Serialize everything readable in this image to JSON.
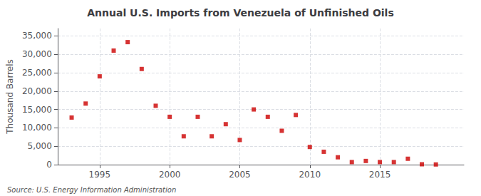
{
  "chart_data": {
    "type": "scatter",
    "title": "Annual U.S. Imports from Venezuela of Unfinished Oils",
    "ylabel": "Thousand Barrels",
    "annotation": "Source: U.S. Energy Information Administration",
    "x": [
      1993,
      1994,
      1995,
      1996,
      1997,
      1998,
      1999,
      2000,
      2001,
      2002,
      2003,
      2004,
      2005,
      2006,
      2007,
      2008,
      2009,
      2010,
      2011,
      2012,
      2013,
      2014,
      2015,
      2016,
      2017,
      2018,
      2019
    ],
    "values": [
      12800,
      16600,
      24000,
      31000,
      33300,
      26000,
      16000,
      13000,
      7700,
      13000,
      7700,
      11000,
      6700,
      15000,
      13000,
      9200,
      13500,
      4800,
      3500,
      2000,
      700,
      1000,
      700,
      700,
      1600,
      100,
      50
    ],
    "color": "#cc0000",
    "marker": "square",
    "xlim": [
      1992,
      2021
    ],
    "xticks": [
      1995,
      2000,
      2005,
      2010,
      2015
    ],
    "ylim": [
      0,
      37000
    ],
    "yticks": [
      0,
      {
        "value": 5000,
        "label": "5,000"
      },
      {
        "value": 10000,
        "label": "10,000"
      },
      {
        "value": 15000,
        "label": "15,000"
      },
      {
        "value": 20000,
        "label": "20,000"
      },
      {
        "value": 25000,
        "label": "25,000"
      },
      {
        "value": 30000,
        "label": "30,000"
      },
      {
        "value": 35000,
        "label": "35,000"
      }
    ],
    "grid": true
  }
}
